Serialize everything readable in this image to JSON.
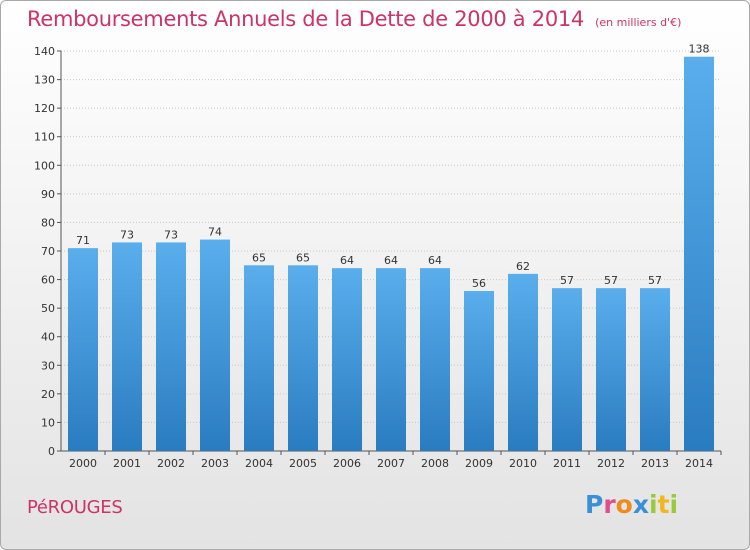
{
  "chart_data": {
    "type": "bar",
    "title": "Remboursements Annuels de la Dette de 2000 à 2014",
    "unit_note": "(en milliers d'€)",
    "categories": [
      "2000",
      "2001",
      "2002",
      "2003",
      "2004",
      "2005",
      "2006",
      "2007",
      "2008",
      "2009",
      "2010",
      "2011",
      "2012",
      "2013",
      "2014"
    ],
    "values": [
      71,
      73,
      73,
      74,
      65,
      65,
      64,
      64,
      64,
      56,
      62,
      57,
      57,
      57,
      138
    ],
    "ylim": [
      0,
      140
    ],
    "yticks": [
      0,
      10,
      20,
      30,
      40,
      50,
      60,
      70,
      80,
      90,
      100,
      110,
      120,
      130,
      140
    ],
    "grid": true,
    "bar_color_top": "#5aaeec",
    "bar_color_bottom": "#2a7cc0",
    "title_color": "#cc3366"
  },
  "footer": {
    "town": "PéROUGES",
    "logo_letters": [
      {
        "ch": "P",
        "color": "#3a8fd6"
      },
      {
        "ch": "r",
        "color": "#e24b8c"
      },
      {
        "ch": "o",
        "color": "#f08a1d"
      },
      {
        "ch": "x",
        "color": "#3a8fd6"
      },
      {
        "ch": "i",
        "color": "#9bc93c"
      },
      {
        "ch": "t",
        "color": "#f0b81d"
      },
      {
        "ch": "i",
        "color": "#9bc93c"
      }
    ]
  }
}
